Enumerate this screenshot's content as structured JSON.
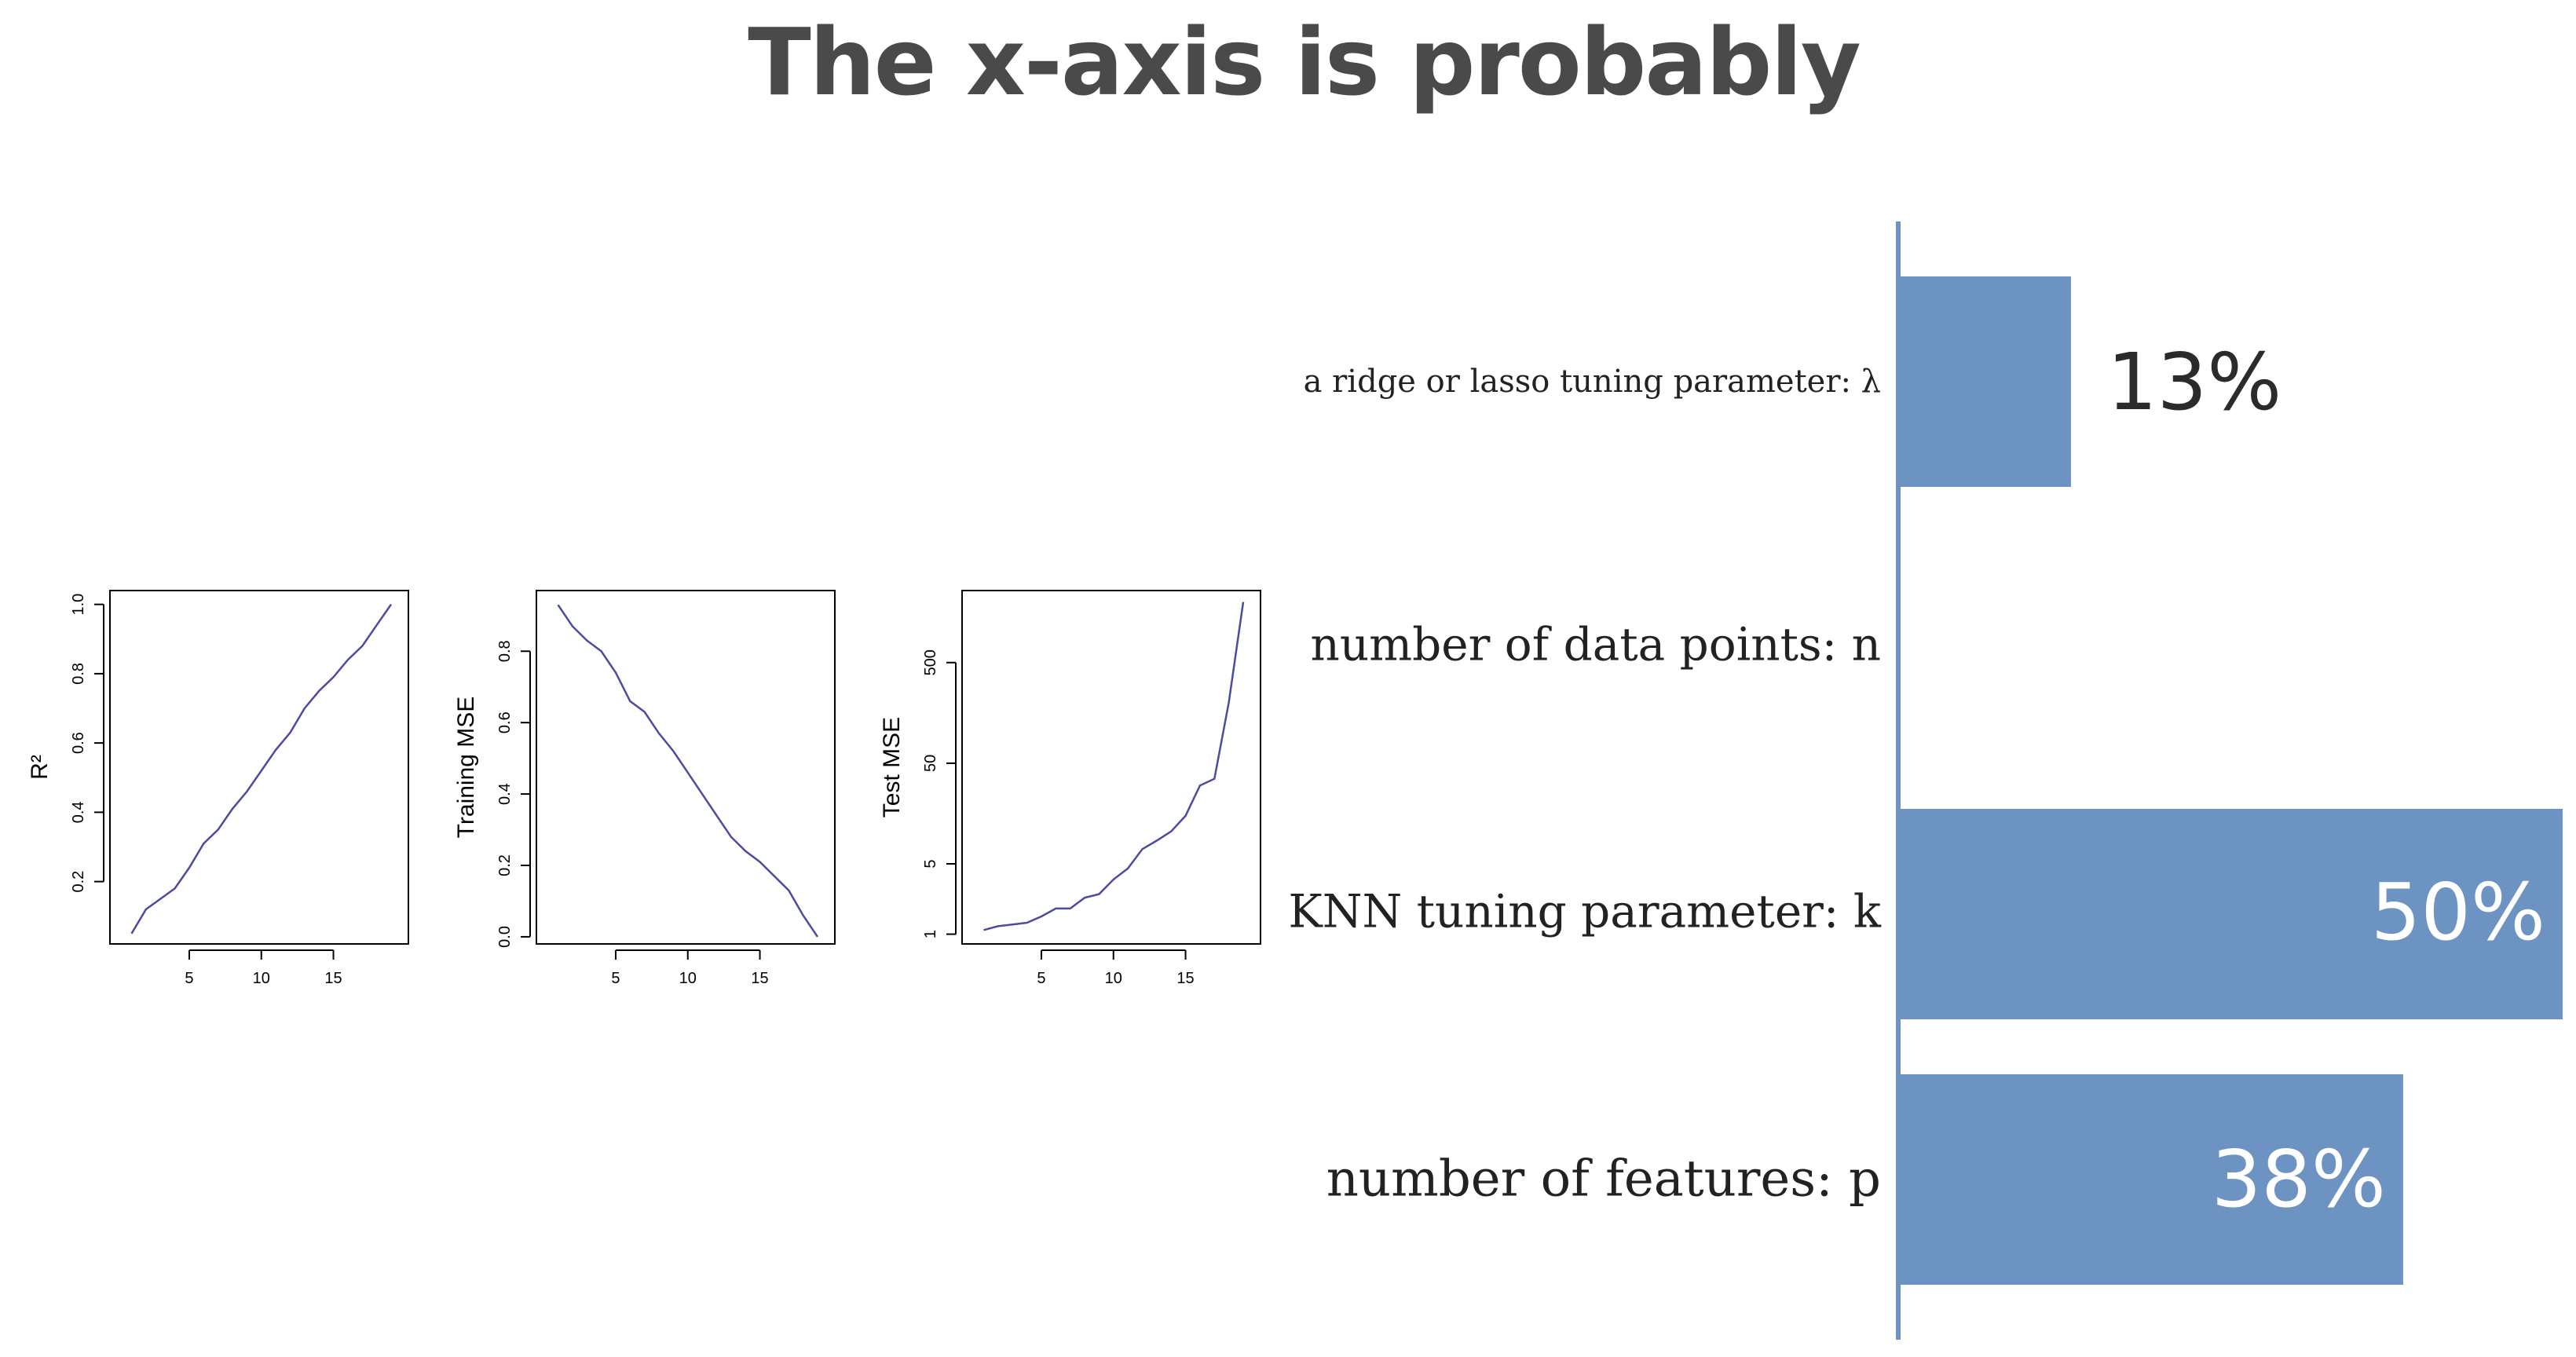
{
  "title": "The x-axis is probably",
  "colors": {
    "bar": "#6d93c3",
    "curve": "#4b4ba0",
    "title": "#4a4a4a",
    "axis": "#000000"
  },
  "chart_data": [
    {
      "type": "line",
      "ylabel": "R²",
      "x": [
        1,
        2,
        3,
        4,
        5,
        6,
        7,
        8,
        9,
        10,
        11,
        12,
        13,
        14,
        15,
        16,
        17,
        18,
        19
      ],
      "y": [
        0.05,
        0.12,
        0.15,
        0.18,
        0.24,
        0.31,
        0.35,
        0.41,
        0.46,
        0.52,
        0.58,
        0.63,
        0.7,
        0.75,
        0.79,
        0.84,
        0.88,
        0.94,
        1.0
      ],
      "xticks": [
        "5",
        "10",
        "15"
      ],
      "yticks": [
        "0.2",
        "0.4",
        "0.6",
        "0.8",
        "1.0"
      ],
      "ylim": [
        0.02,
        1.04
      ]
    },
    {
      "type": "line",
      "ylabel": "Training MSE",
      "x": [
        1,
        2,
        3,
        4,
        5,
        6,
        7,
        8,
        9,
        10,
        11,
        12,
        13,
        14,
        15,
        16,
        17,
        18,
        19
      ],
      "y": [
        0.93,
        0.87,
        0.83,
        0.8,
        0.74,
        0.66,
        0.63,
        0.57,
        0.52,
        0.46,
        0.4,
        0.34,
        0.28,
        0.24,
        0.21,
        0.17,
        0.13,
        0.06,
        0.0
      ],
      "xticks": [
        "5",
        "10",
        "15"
      ],
      "yticks": [
        "0.0",
        "0.2",
        "0.4",
        "0.6",
        "0.8"
      ],
      "ylim": [
        -0.02,
        0.97
      ]
    },
    {
      "type": "line",
      "ylabel": "Test MSE",
      "yscale": "log",
      "x": [
        1,
        2,
        3,
        4,
        5,
        6,
        7,
        8,
        9,
        10,
        11,
        12,
        13,
        14,
        15,
        16,
        17,
        18,
        19
      ],
      "y": [
        1.1,
        1.2,
        1.25,
        1.3,
        1.5,
        1.8,
        1.8,
        2.3,
        2.5,
        3.5,
        4.5,
        7,
        8.5,
        10.5,
        15,
        30,
        35,
        200,
        2000
      ],
      "xticks": [
        "5",
        "10",
        "15"
      ],
      "yticks": [
        "1",
        "5",
        "50",
        "500"
      ],
      "ylim": [
        0.8,
        2600
      ]
    },
    {
      "type": "bar",
      "orientation": "horizontal",
      "categories": [
        "a ridge or lasso tuning parameter: λ",
        "number of data points: n",
        "KNN tuning parameter: k",
        "number of features: p"
      ],
      "values": [
        13,
        0,
        50,
        38
      ],
      "value_labels": [
        "13%",
        "",
        "50%",
        "38%"
      ],
      "xlim": [
        0,
        50
      ]
    }
  ]
}
